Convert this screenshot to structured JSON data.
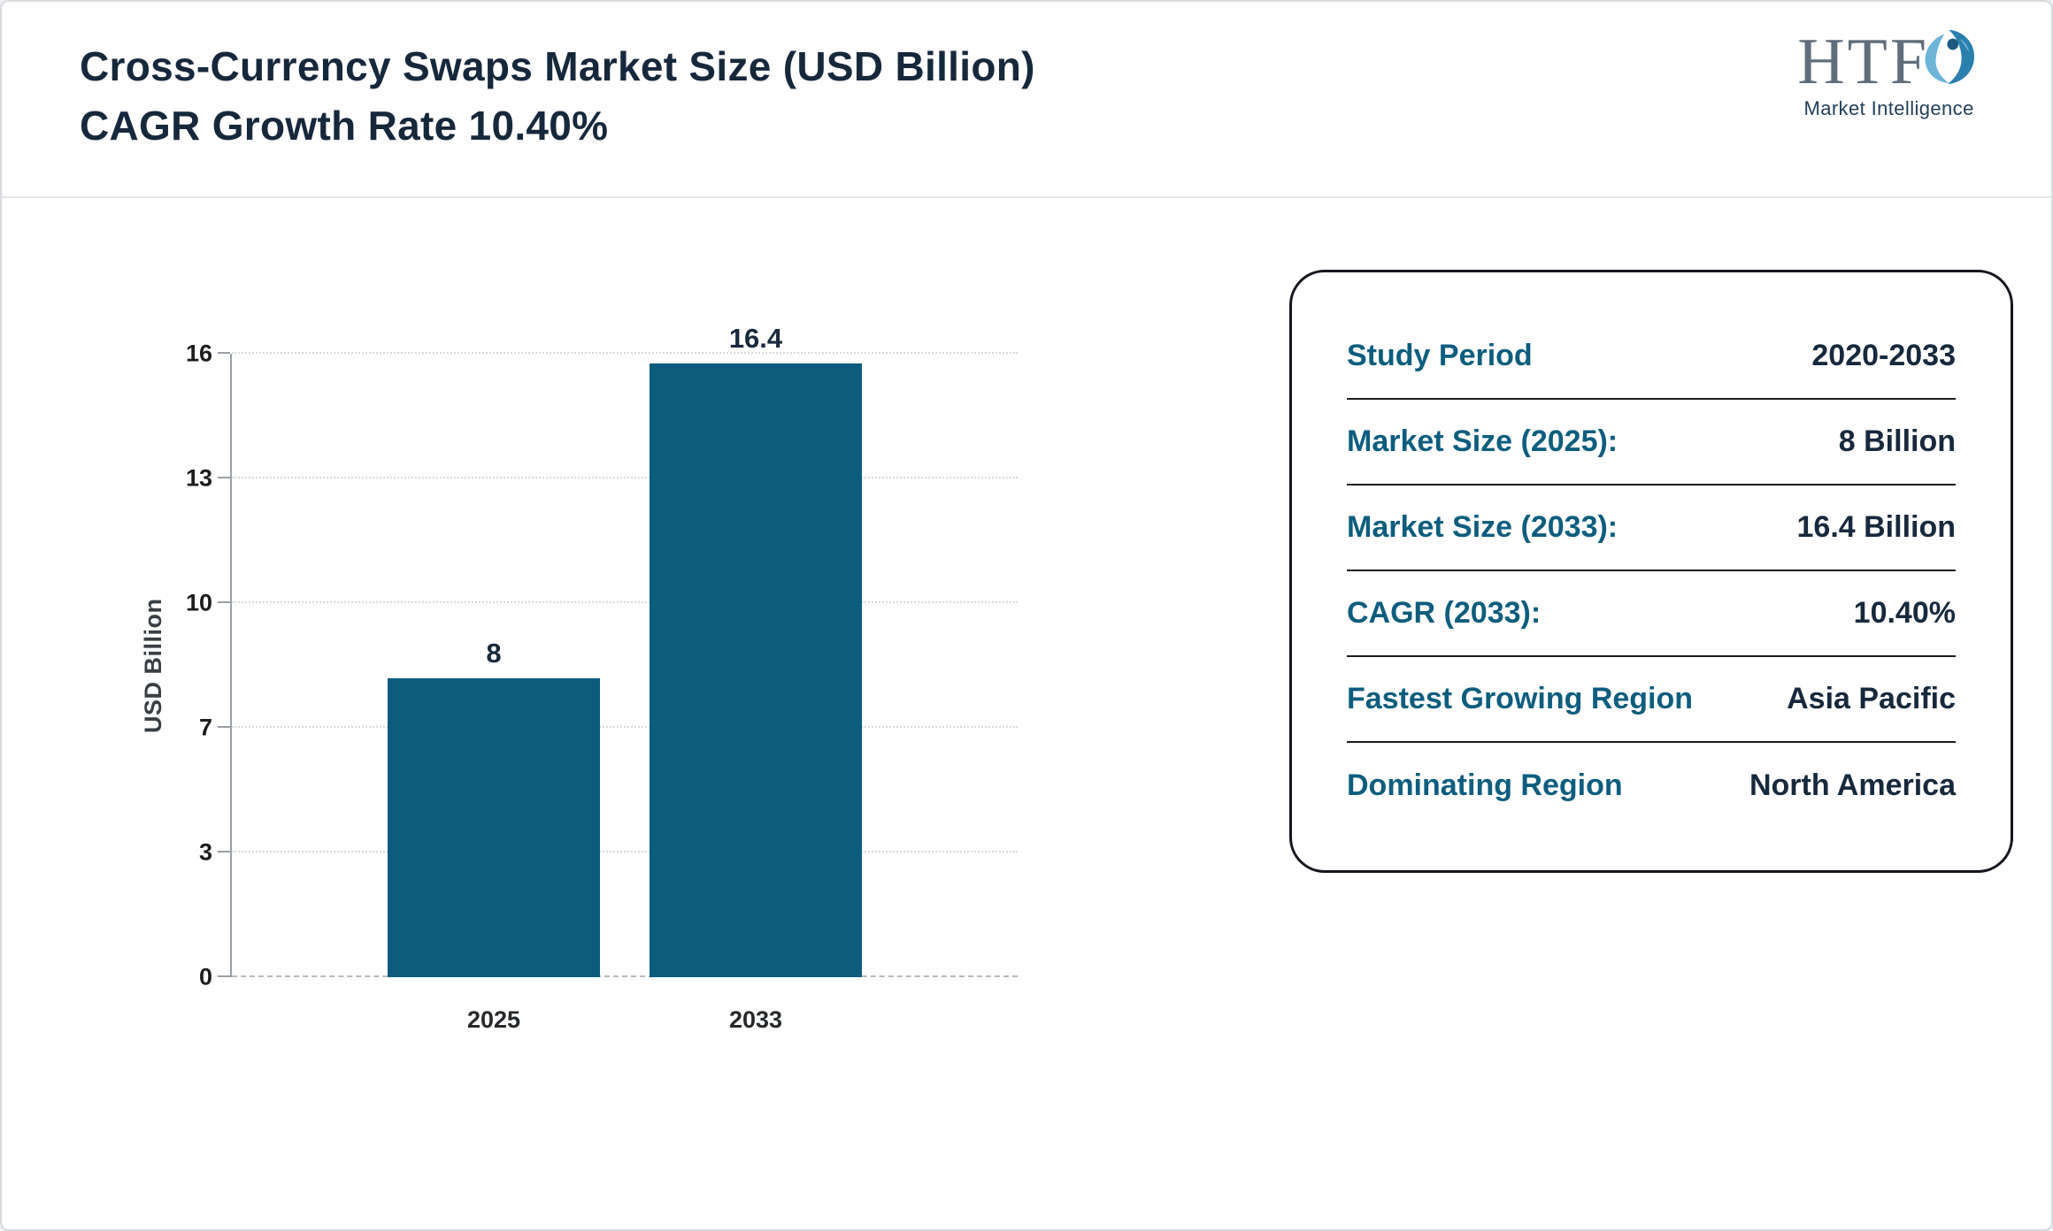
{
  "header": {
    "title": "Cross-Currency Swaps Market Size (USD Billion) CAGR Growth Rate 10.40%",
    "logo": {
      "acronym": "HTF",
      "subtitle": "Market Intelligence"
    }
  },
  "chart_data": {
    "type": "bar",
    "title": "Cross-Currency Swaps Market Size (USD Billion) CAGR Growth Rate 10.40%",
    "categories": [
      "2025",
      "2033"
    ],
    "values": [
      8,
      16.4
    ],
    "xlabel": "",
    "ylabel": "USD Billion",
    "ylim": [
      0,
      16.67
    ],
    "ytick_labels": [
      "0",
      "3",
      "7",
      "10",
      "13",
      "16"
    ],
    "grid": "horizontal-dotted",
    "legend": "none",
    "bar_color": "#0d5c7d"
  },
  "summary_card": {
    "rows": [
      {
        "label": "Study Period",
        "value": "2020-2033"
      },
      {
        "label": "Market Size (2025):",
        "value": "8 Billion"
      },
      {
        "label": "Market Size (2033):",
        "value": "16.4 Billion"
      },
      {
        "label": "CAGR (2033):",
        "value": "10.40%"
      },
      {
        "label": "Fastest Growing Region",
        "value": "Asia Pacific"
      },
      {
        "label": "Dominating Region",
        "value": "North America"
      }
    ]
  },
  "colors": {
    "bar": "#0d5c7d",
    "accent_teal": "#0e5d7e",
    "title_navy": "#16283c"
  }
}
